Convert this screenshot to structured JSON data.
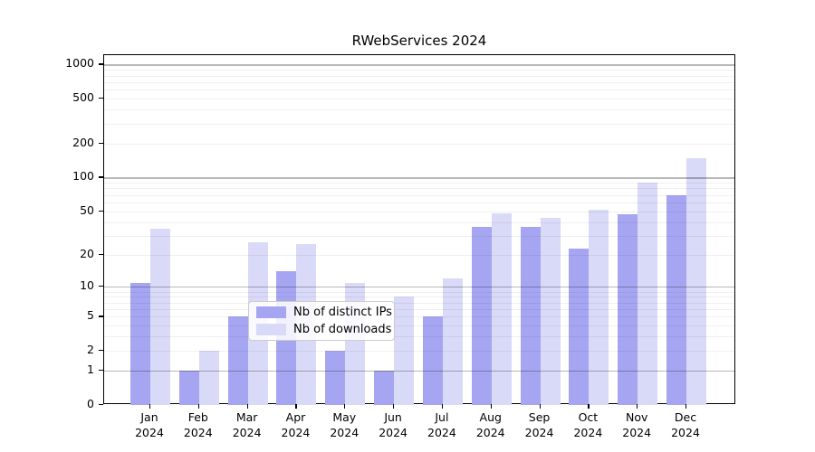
{
  "title": "RWebServices 2024",
  "chart_data": {
    "type": "bar",
    "title": "RWebServices 2024",
    "year": "2024",
    "categories": [
      "Jan",
      "Feb",
      "Mar",
      "Apr",
      "May",
      "Jun",
      "Jul",
      "Aug",
      "Sep",
      "Oct",
      "Nov",
      "Dec"
    ],
    "series": [
      {
        "name": "Nb of distinct IPs",
        "color": "#a5a5f2",
        "values": [
          11,
          1,
          5,
          14,
          2,
          1,
          5,
          36,
          36,
          23,
          47,
          70
        ]
      },
      {
        "name": "Nb of downloads",
        "color": "#d9d9f8",
        "values": [
          35,
          2,
          26,
          25,
          11,
          8,
          12,
          48,
          44,
          52,
          90,
          150
        ]
      }
    ],
    "yticks": [
      0,
      1,
      2,
      5,
      10,
      20,
      50,
      100,
      200,
      500,
      1000
    ],
    "major_gridlines": [
      1,
      10,
      100,
      1000
    ],
    "scale": "log1p",
    "ylim": [
      0,
      1200
    ],
    "grid": "on",
    "legend_position": "lower-center",
    "legend_entries": [
      "Nb of distinct IPs",
      "Nb of downloads"
    ]
  }
}
